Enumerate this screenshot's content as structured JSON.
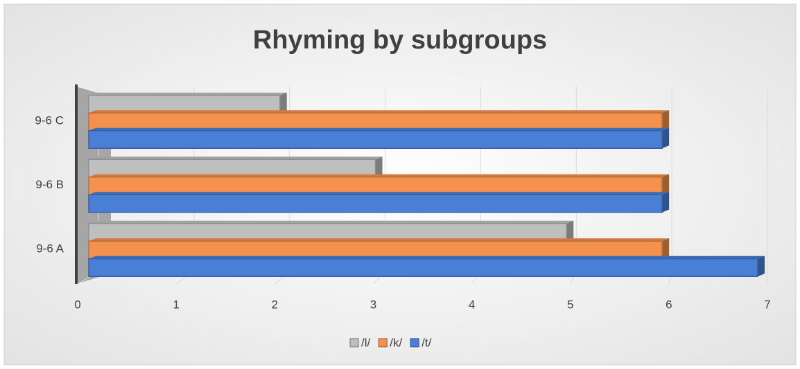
{
  "chart_data": {
    "type": "bar",
    "orientation": "horizontal",
    "title": "Rhyming by subgroups",
    "categories": [
      "9-6 A",
      "9-6 B",
      "9-6 C"
    ],
    "series": [
      {
        "name": "/l/",
        "color": "#bfbfbf",
        "values": [
          5,
          3,
          2
        ]
      },
      {
        "name": "/k/",
        "color": "#f4914d",
        "values": [
          6,
          6,
          6
        ]
      },
      {
        "name": "/t/",
        "color": "#4a7fd6",
        "values": [
          7,
          6,
          6
        ]
      }
    ],
    "xlim": [
      0,
      7
    ],
    "xticks": [
      0,
      1,
      2,
      3,
      4,
      5,
      6,
      7
    ],
    "grid": true,
    "legend": "bottom"
  }
}
